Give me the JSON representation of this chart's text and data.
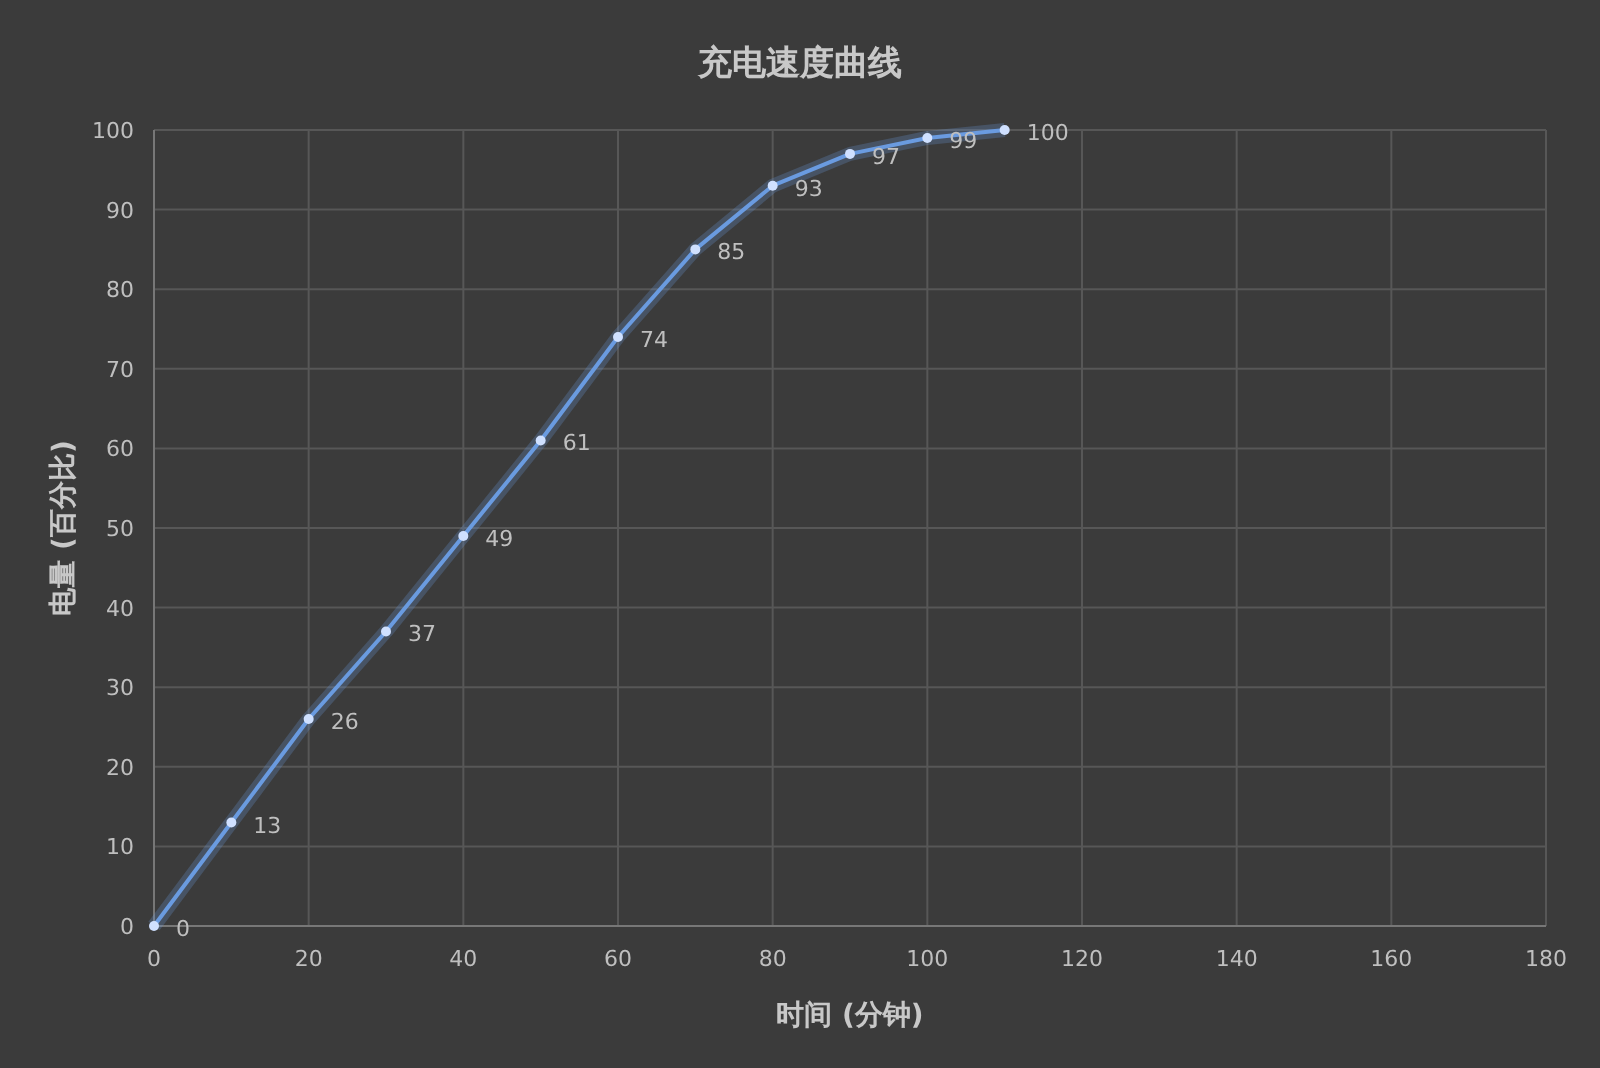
{
  "chart_data": {
    "type": "line",
    "title": "充电速度曲线",
    "xlabel": "时间 (分钟)",
    "ylabel": "电量 (百分比)",
    "x": [
      0,
      10,
      20,
      30,
      40,
      50,
      60,
      70,
      80,
      90,
      100,
      110
    ],
    "series": [
      {
        "color": "#6a9be0",
        "values": [
          0,
          13,
          26,
          37,
          49,
          61,
          74,
          85,
          93,
          97,
          99,
          100
        ]
      }
    ],
    "xlim": [
      0,
      180
    ],
    "xticks": [
      0,
      20,
      40,
      60,
      80,
      100,
      120,
      140,
      160,
      180
    ],
    "ylim": [
      0,
      100
    ],
    "yticks": [
      0,
      10,
      20,
      30,
      40,
      50,
      60,
      70,
      80,
      90,
      100
    ],
    "grid": true,
    "marker": "circle",
    "line_style": "solid",
    "data_labels": true
  }
}
